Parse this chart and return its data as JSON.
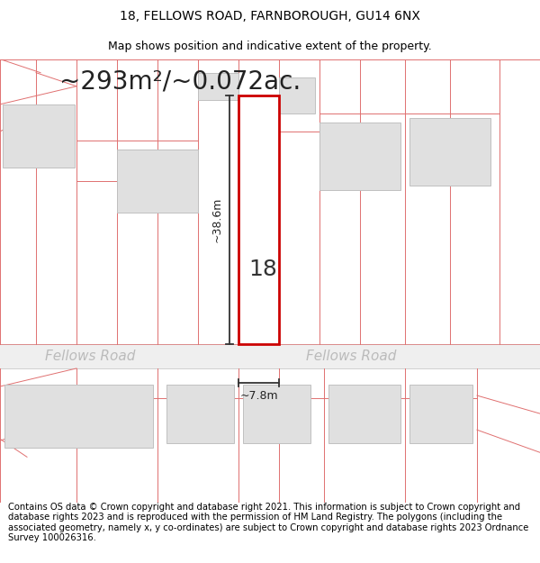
{
  "title_line1": "18, FELLOWS ROAD, FARNBOROUGH, GU14 6NX",
  "title_line2": "Map shows position and indicative extent of the property.",
  "area_text": "~293m²/~0.072ac.",
  "house_number": "18",
  "dim_length": "~38.6m",
  "dim_width": "~7.8m",
  "road_name_left": "Fellows Road",
  "road_name_right": "Fellows Road",
  "footer_text": "Contains OS data © Crown copyright and database right 2021. This information is subject to Crown copyright and database rights 2023 and is reproduced with the permission of HM Land Registry. The polygons (including the associated geometry, namely x, y co-ordinates) are subject to Crown copyright and database rights 2023 Ordnance Survey 100026316.",
  "bg_color": "#ffffff",
  "map_bg": "#ffffff",
  "road_fill": "#efefef",
  "plot_outline_color": "#e07070",
  "building_fill": "#e0e0e0",
  "building_outline": "#c0c0c0",
  "highlight_fill": "#ffffff",
  "highlight_outline": "#cc0000",
  "dim_line_color": "#333333",
  "road_label_color": "#bbbbbb",
  "title_fontsize": 10,
  "subtitle_fontsize": 9,
  "area_fontsize": 20,
  "footer_fontsize": 7.2
}
